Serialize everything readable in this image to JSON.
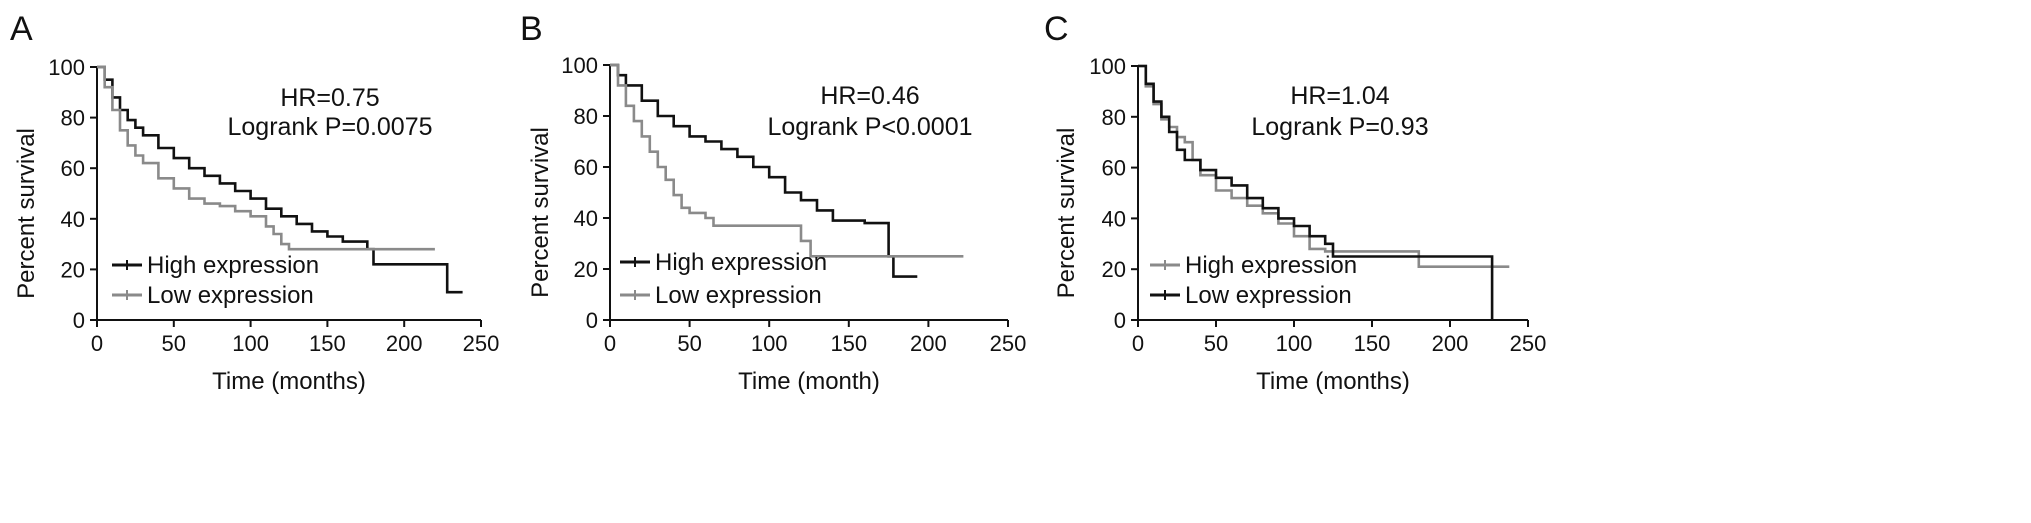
{
  "chart_data": [
    {
      "panel_label": "A",
      "type": "line",
      "xlabel": "Time (months)",
      "ylabel": "Percent survival",
      "xlim": [
        0,
        250
      ],
      "ylim": [
        0,
        100
      ],
      "xticks": [
        "0",
        "50",
        "100",
        "150",
        "200",
        "250"
      ],
      "yticks": [
        "0",
        "20",
        "40",
        "60",
        "80",
        "100"
      ],
      "annotation": [
        "HR=0.75",
        "Logrank P=0.0075"
      ],
      "legend_placement": "bottom-left",
      "series": [
        {
          "name": "High expression",
          "color": "#111111",
          "points": [
            [
              0,
              100
            ],
            [
              5,
              95
            ],
            [
              10,
              88
            ],
            [
              15,
              83
            ],
            [
              20,
              79
            ],
            [
              25,
              76
            ],
            [
              30,
              73
            ],
            [
              40,
              68
            ],
            [
              50,
              64
            ],
            [
              60,
              60
            ],
            [
              70,
              57
            ],
            [
              80,
              54
            ],
            [
              90,
              51
            ],
            [
              100,
              48
            ],
            [
              110,
              44
            ],
            [
              120,
              41
            ],
            [
              130,
              38
            ],
            [
              140,
              35
            ],
            [
              150,
              33
            ],
            [
              160,
              31
            ],
            [
              170,
              31
            ],
            [
              176,
              31
            ],
            [
              176,
              28
            ],
            [
              180,
              28
            ],
            [
              180,
              22
            ],
            [
              228,
              22
            ],
            [
              228,
              11
            ],
            [
              238,
              11
            ]
          ]
        },
        {
          "name": "Low expression",
          "color": "#8a8a8a",
          "points": [
            [
              0,
              100
            ],
            [
              5,
              92
            ],
            [
              10,
              83
            ],
            [
              15,
              75
            ],
            [
              20,
              69
            ],
            [
              25,
              65
            ],
            [
              30,
              62
            ],
            [
              40,
              56
            ],
            [
              50,
              52
            ],
            [
              60,
              48
            ],
            [
              70,
              46
            ],
            [
              80,
              45
            ],
            [
              90,
              43
            ],
            [
              100,
              41
            ],
            [
              110,
              37
            ],
            [
              115,
              34
            ],
            [
              120,
              30
            ],
            [
              125,
              28
            ],
            [
              150,
              28
            ],
            [
              180,
              28
            ],
            [
              220,
              28
            ]
          ]
        }
      ]
    },
    {
      "panel_label": "B",
      "type": "line",
      "xlabel": "Time (month)",
      "ylabel": "Percent survival",
      "xlim": [
        0,
        250
      ],
      "ylim": [
        0,
        100
      ],
      "xticks": [
        "0",
        "50",
        "100",
        "150",
        "200",
        "250"
      ],
      "yticks": [
        "0",
        "20",
        "40",
        "60",
        "80",
        "100"
      ],
      "annotation": [
        "HR=0.46",
        "Logrank P<0.0001"
      ],
      "legend_placement": "bottom-left",
      "series": [
        {
          "name": "High expression",
          "color": "#111111",
          "points": [
            [
              0,
              100
            ],
            [
              5,
              96
            ],
            [
              10,
              92
            ],
            [
              20,
              86
            ],
            [
              30,
              80
            ],
            [
              40,
              76
            ],
            [
              50,
              72
            ],
            [
              60,
              70
            ],
            [
              70,
              67
            ],
            [
              80,
              64
            ],
            [
              90,
              60
            ],
            [
              100,
              56
            ],
            [
              110,
              50
            ],
            [
              120,
              47
            ],
            [
              130,
              43
            ],
            [
              140,
              39
            ],
            [
              160,
              38
            ],
            [
              175,
              38
            ],
            [
              175,
              25
            ],
            [
              178,
              25
            ],
            [
              178,
              17
            ],
            [
              193,
              17
            ]
          ]
        },
        {
          "name": "Low expression",
          "color": "#8a8a8a",
          "points": [
            [
              0,
              100
            ],
            [
              5,
              92
            ],
            [
              10,
              84
            ],
            [
              15,
              78
            ],
            [
              20,
              72
            ],
            [
              25,
              66
            ],
            [
              30,
              60
            ],
            [
              35,
              55
            ],
            [
              40,
              49
            ],
            [
              45,
              44
            ],
            [
              50,
              42
            ],
            [
              60,
              40
            ],
            [
              65,
              37
            ],
            [
              80,
              37
            ],
            [
              100,
              37
            ],
            [
              120,
              37
            ],
            [
              120,
              31
            ],
            [
              126,
              31
            ],
            [
              126,
              25
            ],
            [
              150,
              25
            ],
            [
              180,
              25
            ],
            [
              222,
              25
            ]
          ]
        }
      ]
    },
    {
      "panel_label": "C",
      "type": "line",
      "xlabel": "Time (months)",
      "ylabel": "Percent survival",
      "xlim": [
        0,
        250
      ],
      "ylim": [
        0,
        100
      ],
      "xticks": [
        "0",
        "50",
        "100",
        "150",
        "200",
        "250"
      ],
      "yticks": [
        "0",
        "20",
        "40",
        "60",
        "80",
        "100"
      ],
      "annotation": [
        "HR=1.04",
        "Logrank P=0.93"
      ],
      "legend_placement": "bottom-left",
      "series": [
        {
          "name": "High expression",
          "color": "#8a8a8a",
          "points": [
            [
              0,
              100
            ],
            [
              5,
              92
            ],
            [
              10,
              85
            ],
            [
              15,
              79
            ],
            [
              20,
              76
            ],
            [
              25,
              72
            ],
            [
              30,
              70
            ],
            [
              35,
              63
            ],
            [
              40,
              57
            ],
            [
              50,
              51
            ],
            [
              60,
              48
            ],
            [
              70,
              45
            ],
            [
              80,
              42
            ],
            [
              90,
              38
            ],
            [
              100,
              33
            ],
            [
              110,
              28
            ],
            [
              120,
              27
            ],
            [
              125,
              27
            ],
            [
              150,
              27
            ],
            [
              180,
              26
            ],
            [
              180,
              21
            ],
            [
              238,
              21
            ]
          ]
        },
        {
          "name": "Low expression",
          "color": "#111111",
          "points": [
            [
              0,
              100
            ],
            [
              5,
              93
            ],
            [
              10,
              86
            ],
            [
              15,
              80
            ],
            [
              20,
              74
            ],
            [
              25,
              67
            ],
            [
              30,
              63
            ],
            [
              40,
              59
            ],
            [
              50,
              56
            ],
            [
              60,
              53
            ],
            [
              70,
              48
            ],
            [
              80,
              44
            ],
            [
              90,
              40
            ],
            [
              100,
              37
            ],
            [
              110,
              33
            ],
            [
              120,
              30
            ],
            [
              125,
              25
            ],
            [
              150,
              25
            ],
            [
              200,
              25
            ],
            [
              227,
              25
            ],
            [
              227,
              0
            ]
          ]
        }
      ]
    }
  ]
}
